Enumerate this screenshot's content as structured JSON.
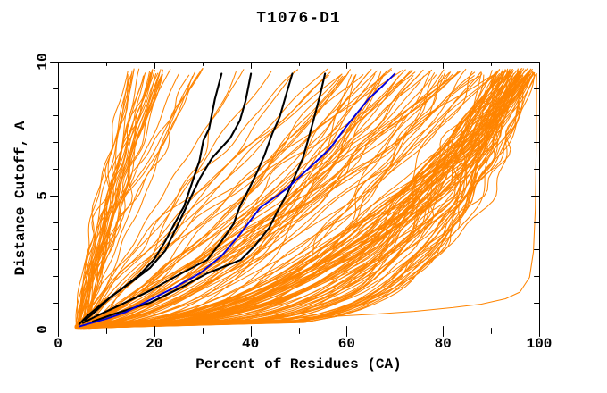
{
  "title": "T1076-D1",
  "axes": {
    "xlabel": "Percent of Residues (CA)",
    "ylabel": "Distance Cutoff, A",
    "xlim": [
      0,
      100
    ],
    "ylim": [
      0,
      10
    ],
    "xticks_major": [
      0,
      20,
      40,
      60,
      80,
      100
    ],
    "xticks_minor": [
      10,
      30,
      50,
      70,
      90
    ],
    "yticks_major": [
      0,
      5,
      10
    ],
    "yticks_minor": [
      1,
      2,
      3,
      4,
      6,
      7,
      8,
      9
    ]
  },
  "colors": {
    "background": "#ffffff",
    "frame": "#000000",
    "text": "#000000",
    "orange": "#ff8400",
    "black": "#000000",
    "blue": "#0000dd"
  },
  "chart_data": {
    "type": "line",
    "title": "T1076-D1",
    "xlabel": "Percent of Residues (CA)",
    "ylabel": "Distance Cutoff, A",
    "xlim": [
      0,
      100
    ],
    "ylim": [
      0,
      10
    ],
    "grid": false,
    "legend": null,
    "description": "CASP-style accuracy curves for target T1076-D1: each curve shows the percent of CA residues (x) fitting under a distance cutoff in Angstroms (y). A large ensemble of orange model curves, four black highlighted curves and one blue highlighted curve; values below are estimated from the plot.",
    "series": [
      {
        "name": "orange-envelope",
        "role": "orange",
        "points": [
          [
            5,
            0.08
          ],
          [
            14,
            0.18
          ],
          [
            28,
            0.28
          ],
          [
            45,
            0.4
          ],
          [
            58,
            0.5
          ],
          [
            66,
            0.58
          ],
          [
            74,
            0.68
          ],
          [
            82,
            0.82
          ],
          [
            88,
            0.95
          ],
          [
            93,
            1.15
          ],
          [
            96,
            1.4
          ],
          [
            98,
            1.95
          ],
          [
            98.8,
            2.9
          ],
          [
            99.2,
            4.5
          ],
          [
            99.4,
            7.0
          ],
          [
            99.5,
            9.55
          ]
        ]
      },
      {
        "name": "black-curve-1",
        "role": "black",
        "points": [
          [
            4.4,
            0.2
          ],
          [
            6,
            0.5
          ],
          [
            8.7,
            0.9
          ],
          [
            12.7,
            1.45
          ],
          [
            16.7,
            2.0
          ],
          [
            19.9,
            2.6
          ],
          [
            22.3,
            3.3
          ],
          [
            24.2,
            3.95
          ],
          [
            26.2,
            4.6
          ],
          [
            27.8,
            5.45
          ],
          [
            29.4,
            6.3
          ],
          [
            30.2,
            7.05
          ],
          [
            31.4,
            7.5
          ],
          [
            32.6,
            8.6
          ],
          [
            34,
            9.55
          ]
        ]
      },
      {
        "name": "black-curve-2",
        "role": "black",
        "points": [
          [
            5.6,
            0.35
          ],
          [
            7.9,
            0.7
          ],
          [
            11.1,
            1.25
          ],
          [
            15.1,
            1.75
          ],
          [
            19.1,
            2.3
          ],
          [
            22.3,
            2.95
          ],
          [
            25.8,
            4.25
          ],
          [
            27.5,
            4.9
          ],
          [
            29.5,
            5.65
          ],
          [
            32,
            6.4
          ],
          [
            35.8,
            7.15
          ],
          [
            37.8,
            7.8
          ],
          [
            39,
            8.55
          ],
          [
            40.1,
            9.55
          ]
        ]
      },
      {
        "name": "black-curve-3",
        "role": "black",
        "points": [
          [
            5.2,
            0.25
          ],
          [
            7.9,
            0.5
          ],
          [
            12.7,
            0.9
          ],
          [
            19.1,
            1.45
          ],
          [
            24.6,
            2.0
          ],
          [
            31,
            2.6
          ],
          [
            34,
            3.3
          ],
          [
            36.5,
            3.95
          ],
          [
            37.8,
            4.6
          ],
          [
            39.7,
            5.25
          ],
          [
            41.3,
            5.85
          ],
          [
            42.9,
            6.5
          ],
          [
            44.5,
            7.3
          ],
          [
            46.1,
            7.95
          ],
          [
            47.3,
            8.7
          ],
          [
            48.7,
            9.55
          ]
        ]
      },
      {
        "name": "black-curve-4",
        "role": "black",
        "points": [
          [
            7.2,
            0.3
          ],
          [
            11.9,
            0.6
          ],
          [
            19.1,
            1.0
          ],
          [
            25.4,
            1.55
          ],
          [
            31,
            2.1
          ],
          [
            38,
            2.6
          ],
          [
            41,
            3.15
          ],
          [
            43.9,
            3.8
          ],
          [
            45.7,
            4.45
          ],
          [
            47.7,
            5.1
          ],
          [
            49.3,
            5.75
          ],
          [
            50.9,
            6.4
          ],
          [
            52.1,
            7.15
          ],
          [
            53.3,
            7.95
          ],
          [
            54.4,
            8.7
          ],
          [
            55.5,
            9.55
          ]
        ]
      },
      {
        "name": "blue-curve",
        "role": "blue",
        "points": [
          [
            4.5,
            0.12
          ],
          [
            7,
            0.25
          ],
          [
            10,
            0.4
          ],
          [
            14,
            0.65
          ],
          [
            19,
            1.1
          ],
          [
            24,
            1.55
          ],
          [
            29.5,
            2.1
          ],
          [
            34,
            2.75
          ],
          [
            38,
            3.6
          ],
          [
            42,
            4.55
          ],
          [
            47.5,
            5.25
          ],
          [
            52,
            6.0
          ],
          [
            56.5,
            6.75
          ],
          [
            60,
            7.6
          ],
          [
            64.5,
            8.6
          ],
          [
            67.5,
            9.1
          ],
          [
            70,
            9.55
          ]
        ]
      }
    ],
    "orange_ensemble": {
      "seed": 1076,
      "start_percent_range": [
        3.5,
        6.5
      ],
      "cutoff_start_range": [
        0.04,
        0.16
      ],
      "cutoff_end_range": [
        9.45,
        9.75
      ],
      "groups": [
        {
          "name": "right-wall",
          "count": 80,
          "top_percent": [
            87,
            99.3
          ],
          "top_bias": 0.55,
          "exponent": [
            0.16,
            0.5
          ]
        },
        {
          "name": "lower-sweep",
          "count": 52,
          "top_percent": [
            58,
            95
          ],
          "top_bias": 1.0,
          "exponent": [
            0.3,
            0.95
          ]
        },
        {
          "name": "mid-diagonals",
          "count": 14,
          "top_percent": [
            31,
            74
          ],
          "top_bias": 1.0,
          "exponent": [
            0.7,
            1.25
          ]
        },
        {
          "name": "left-stragglers",
          "count": 8,
          "top_percent": [
            22.5,
            31
          ],
          "top_bias": 1.0,
          "exponent": [
            0.9,
            1.45
          ]
        },
        {
          "name": "left-bundle",
          "count": 27,
          "top_percent": [
            14.5,
            22
          ],
          "top_bias": 1.3,
          "exponent": [
            0.95,
            1.45
          ]
        }
      ]
    }
  }
}
